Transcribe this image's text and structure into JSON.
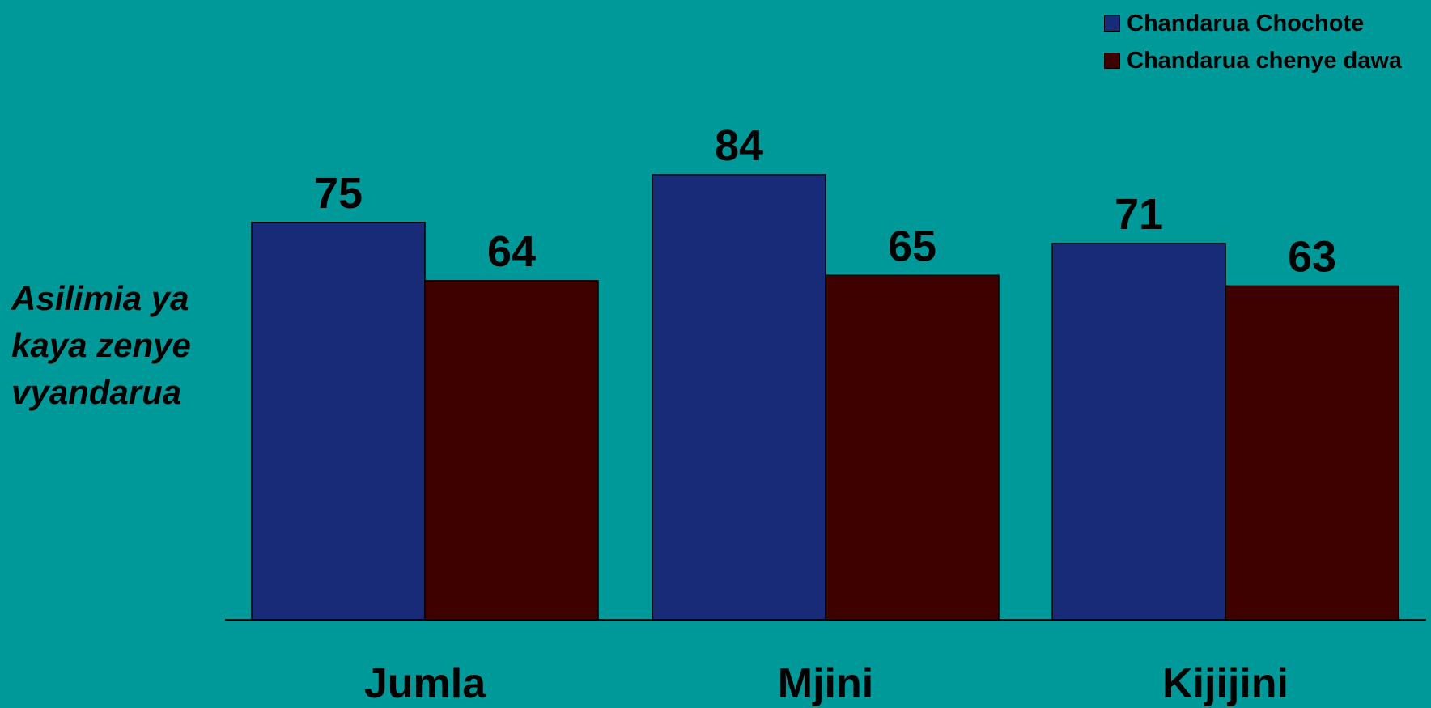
{
  "chart_data": {
    "type": "bar",
    "categories": [
      "Jumla",
      "Mjini",
      "Kijijini"
    ],
    "series": [
      {
        "name": "Chandarua Chochote",
        "values": [
          75,
          84,
          71
        ],
        "color": "#172B78"
      },
      {
        "name": "Chandarua chenye dawa",
        "values": [
          64,
          65,
          63
        ],
        "color": "#3F0000"
      }
    ],
    "ylabel_lines": [
      "Asilimia ya",
      "kaya zenye",
      "vyandarua"
    ],
    "ylim": [
      0,
      100
    ],
    "grid": false,
    "legend_position": "top-right",
    "data_labels": true
  },
  "colors": {
    "background": "#009999",
    "axis": "#000000",
    "text": "#000000"
  }
}
